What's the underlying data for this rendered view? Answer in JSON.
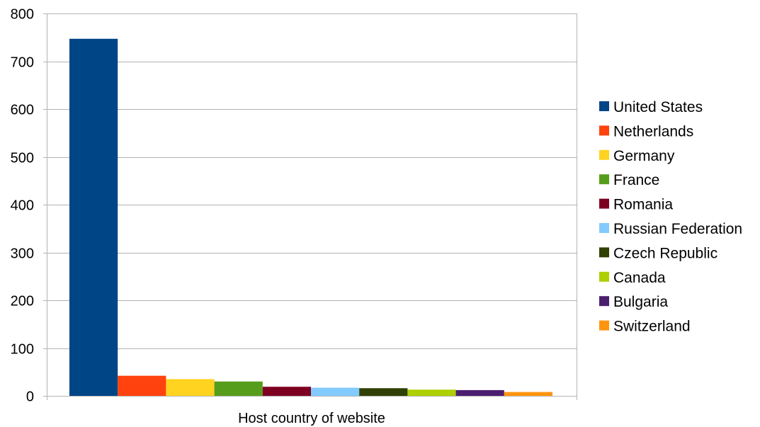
{
  "chart_data": {
    "type": "bar",
    "title": "",
    "xlabel": "Host country of website",
    "ylabel": "",
    "ylim": [
      0,
      800
    ],
    "yticks": [
      0,
      100,
      200,
      300,
      400,
      500,
      600,
      700,
      800
    ],
    "grid": true,
    "legend_position": "right",
    "categories": [
      "Host country of website"
    ],
    "series": [
      {
        "name": "United States",
        "values": [
          747
        ],
        "color": "#004586"
      },
      {
        "name": "Netherlands",
        "values": [
          42
        ],
        "color": "#ff420e"
      },
      {
        "name": "Germany",
        "values": [
          35
        ],
        "color": "#ffd320"
      },
      {
        "name": "France",
        "values": [
          30
        ],
        "color": "#579d1c"
      },
      {
        "name": "Romania",
        "values": [
          19
        ],
        "color": "#7e0021"
      },
      {
        "name": "Russian Federation",
        "values": [
          17
        ],
        "color": "#83caff"
      },
      {
        "name": "Czech Republic",
        "values": [
          16
        ],
        "color": "#314004"
      },
      {
        "name": "Canada",
        "values": [
          13
        ],
        "color": "#aecf00"
      },
      {
        "name": "Bulgaria",
        "values": [
          12
        ],
        "color": "#4b1f6f"
      },
      {
        "name": "Switzerland",
        "values": [
          8
        ],
        "color": "#ff950e"
      }
    ]
  }
}
